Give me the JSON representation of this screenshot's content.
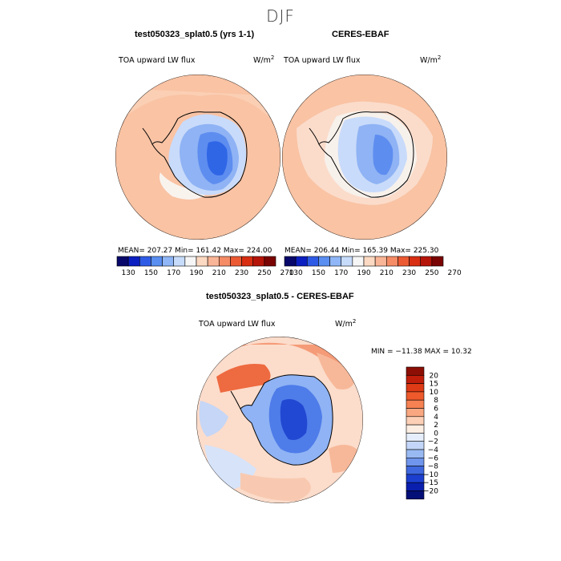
{
  "season": "DJF",
  "panels": {
    "model": {
      "title": "test050323_splat0.5 (yrs 1-1)",
      "variable": "TOA upward LW flux",
      "units_base": "W/m",
      "units_exp": "2",
      "stats": "MEAN= 207.27    Min= 161.42    Max= 224.00"
    },
    "obs": {
      "title": "CERES-EBAF",
      "variable": "TOA upward LW flux",
      "units_base": "W/m",
      "units_exp": "2",
      "stats": "MEAN= 206.44    Min= 165.39    Max= 225.30"
    },
    "diff": {
      "title": "test050323_splat0.5 - CERES-EBAF",
      "variable": "TOA upward LW flux",
      "units_base": "W/m",
      "units_exp": "2",
      "stats": "MIN = −11.38  MAX =  10.32"
    }
  },
  "chart_data": [
    {
      "type": "heatmap",
      "title": "test050323_splat0.5 (yrs 1-1)",
      "field": "TOA upward LW flux",
      "units": "W/m^2",
      "projection": "south polar stereographic",
      "mean": 207.27,
      "min": 161.42,
      "max": 224.0,
      "colorbar_levels": [
        130,
        150,
        170,
        190,
        210,
        230,
        250,
        270
      ],
      "colorbar_colors": [
        "#08086a",
        "#0c1fc0",
        "#2e5be6",
        "#5a8ef0",
        "#8fb6f6",
        "#c7dcfb",
        "#f6f6f6",
        "#fcd9c2",
        "#f9b597",
        "#f58c66",
        "#ec5a33",
        "#d82e12",
        "#b51409",
        "#7a0403"
      ]
    },
    {
      "type": "heatmap",
      "title": "CERES-EBAF",
      "field": "TOA upward LW flux",
      "units": "W/m^2",
      "projection": "south polar stereographic",
      "mean": 206.44,
      "min": 165.39,
      "max": 225.3,
      "colorbar_levels": [
        130,
        150,
        170,
        190,
        210,
        230,
        250,
        270
      ],
      "colorbar_colors": [
        "#08086a",
        "#0c1fc0",
        "#2e5be6",
        "#5a8ef0",
        "#8fb6f6",
        "#c7dcfb",
        "#f6f6f6",
        "#fcd9c2",
        "#f9b597",
        "#f58c66",
        "#ec5a33",
        "#d82e12",
        "#b51409",
        "#7a0403"
      ]
    },
    {
      "type": "heatmap",
      "title": "test050323_splat0.5 - CERES-EBAF",
      "field": "TOA upward LW flux",
      "units": "W/m^2",
      "projection": "south polar stereographic",
      "min": -11.38,
      "max": 10.32,
      "colorbar_levels": [
        "20",
        "15",
        "10",
        "8",
        "6",
        "4",
        "2",
        "0",
        "−2",
        "−4",
        "−6",
        "−8",
        "−10",
        "−15",
        "−20"
      ],
      "colorbar_colors": [
        "#8c0e05",
        "#c01e0b",
        "#dd3a15",
        "#ee5a2b",
        "#f68152",
        "#f9a781",
        "#fcd0b6",
        "#fdeee3",
        "#e6eefc",
        "#c3d6f9",
        "#99b9f3",
        "#6f95ec",
        "#3f68de",
        "#1c3fcf",
        "#0a1fae",
        "#050f78"
      ]
    }
  ]
}
